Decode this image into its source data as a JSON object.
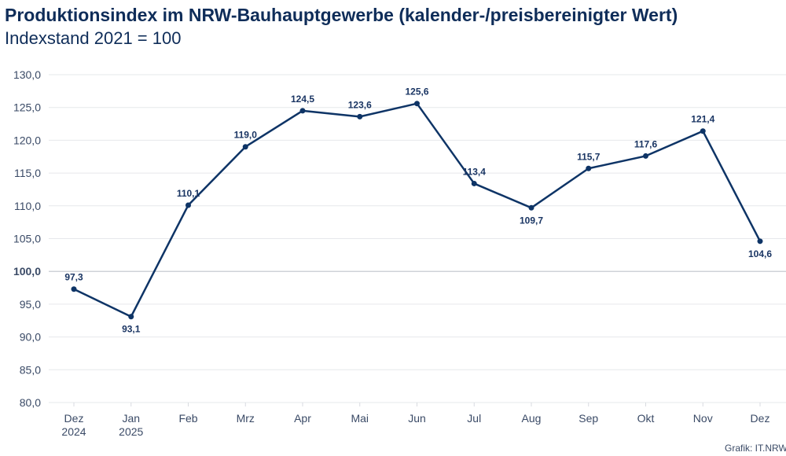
{
  "chart_data": {
    "type": "line",
    "title": "Produktionsindex im NRW-Bauhauptgewerbe (kalender-/preisbereinigter Wert)",
    "subtitle": "Indexstand 2021 = 100",
    "categories": [
      [
        "Dez",
        "2024"
      ],
      [
        "Jan",
        "2025"
      ],
      [
        "Feb"
      ],
      [
        "Mrz"
      ],
      [
        "Apr"
      ],
      [
        "Mai"
      ],
      [
        "Jun"
      ],
      [
        "Jul"
      ],
      [
        "Aug"
      ],
      [
        "Sep"
      ],
      [
        "Okt"
      ],
      [
        "Nov"
      ],
      [
        "Dez"
      ]
    ],
    "series": [
      {
        "name": "Produktionsindex",
        "values": [
          97.3,
          93.1,
          110.1,
          119.0,
          124.5,
          123.6,
          125.6,
          113.4,
          109.7,
          115.7,
          117.6,
          121.4,
          104.6
        ]
      }
    ],
    "data_labels": [
      "97,3",
      "93,1",
      "110,1",
      "119,0",
      "124,5",
      "123,6",
      "125,6",
      "113,4",
      "109,7",
      "115,7",
      "117,6",
      "121,4",
      "104,6"
    ],
    "label_below": [
      false,
      true,
      false,
      false,
      false,
      false,
      false,
      false,
      true,
      false,
      false,
      false,
      true
    ],
    "ylim": [
      80,
      130
    ],
    "yticks": [
      80,
      85,
      90,
      95,
      100,
      105,
      110,
      115,
      120,
      125,
      130
    ],
    "ytick_labels": [
      "80,0",
      "85,0",
      "90,0",
      "95,0",
      "100,0",
      "105,0",
      "110,0",
      "115,0",
      "120,0",
      "125,0",
      "130,0"
    ],
    "grid": true,
    "xlabel": "",
    "ylabel": "",
    "line_color": "#0e3466",
    "source": "Grafik: IT.NRW"
  }
}
